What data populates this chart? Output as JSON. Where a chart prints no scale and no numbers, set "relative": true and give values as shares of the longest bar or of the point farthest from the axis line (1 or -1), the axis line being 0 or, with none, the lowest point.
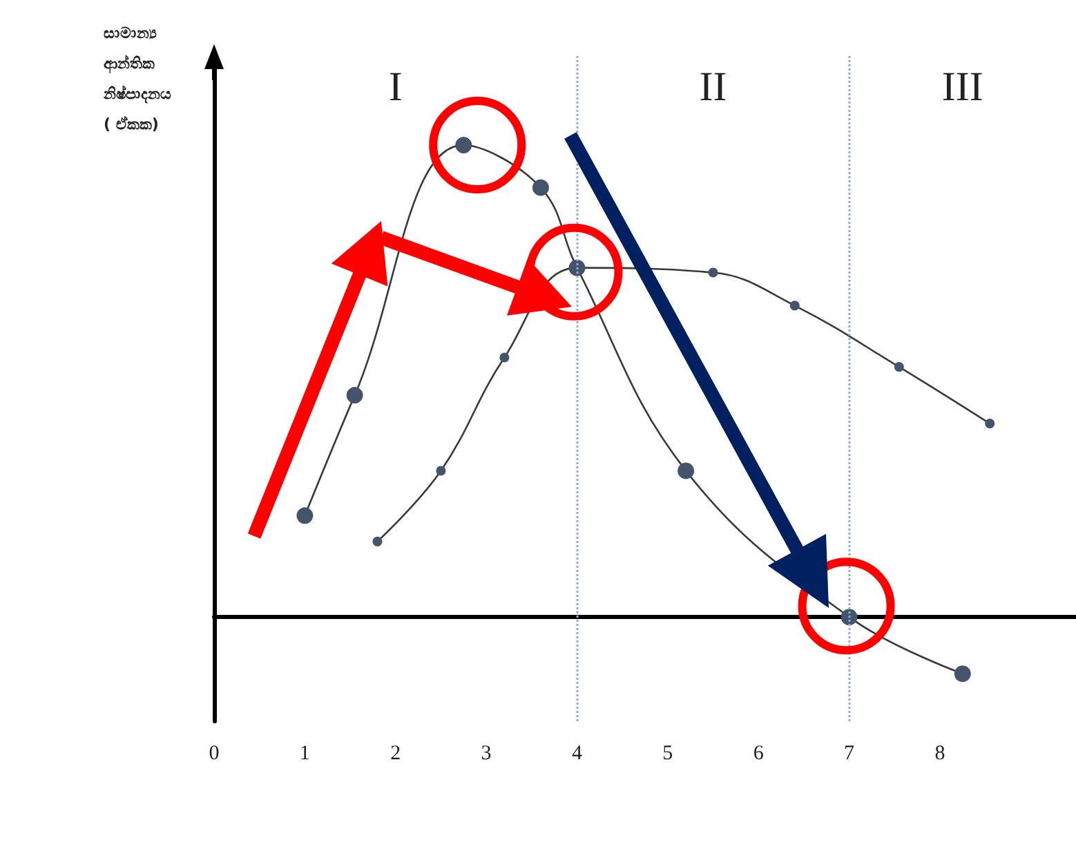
{
  "chart_data": {
    "type": "line",
    "ylabel": "සාමාන්‍ය ආන්තික නිෂ්පාදනය ( ඒකක)",
    "relative": true,
    "xlim": [
      0,
      9.5
    ],
    "xticks": [
      0,
      1,
      2,
      3,
      4,
      5,
      6,
      7,
      8
    ],
    "marker": "circle",
    "line_style": "solid",
    "annotations": [
      "I",
      "II",
      "III"
    ],
    "series": [
      {
        "color": "#44546a",
        "x": [
          1.0,
          1.55,
          2.75,
          3.6,
          4,
          5.2,
          7,
          8.25
        ],
        "values": [
          0.215,
          0.47,
          1,
          0.91,
          0.74,
          0.31,
          0,
          -0.12
        ]
      },
      {
        "color": "#44546a",
        "x": [
          1.8,
          2.5,
          3.2,
          4,
          5.5,
          6.4,
          7.55,
          8.55
        ],
        "values": [
          0.16,
          0.31,
          0.55,
          0.74,
          0.73,
          0.66,
          0.53,
          0.41
        ]
      }
    ],
    "ref_lines": [
      {
        "axis": "x",
        "value": 4,
        "color": "#8faadc",
        "line_style": "dotted"
      },
      {
        "axis": "x",
        "value": 7,
        "color": "#8faadc",
        "line_style": "dotted"
      }
    ]
  }
}
